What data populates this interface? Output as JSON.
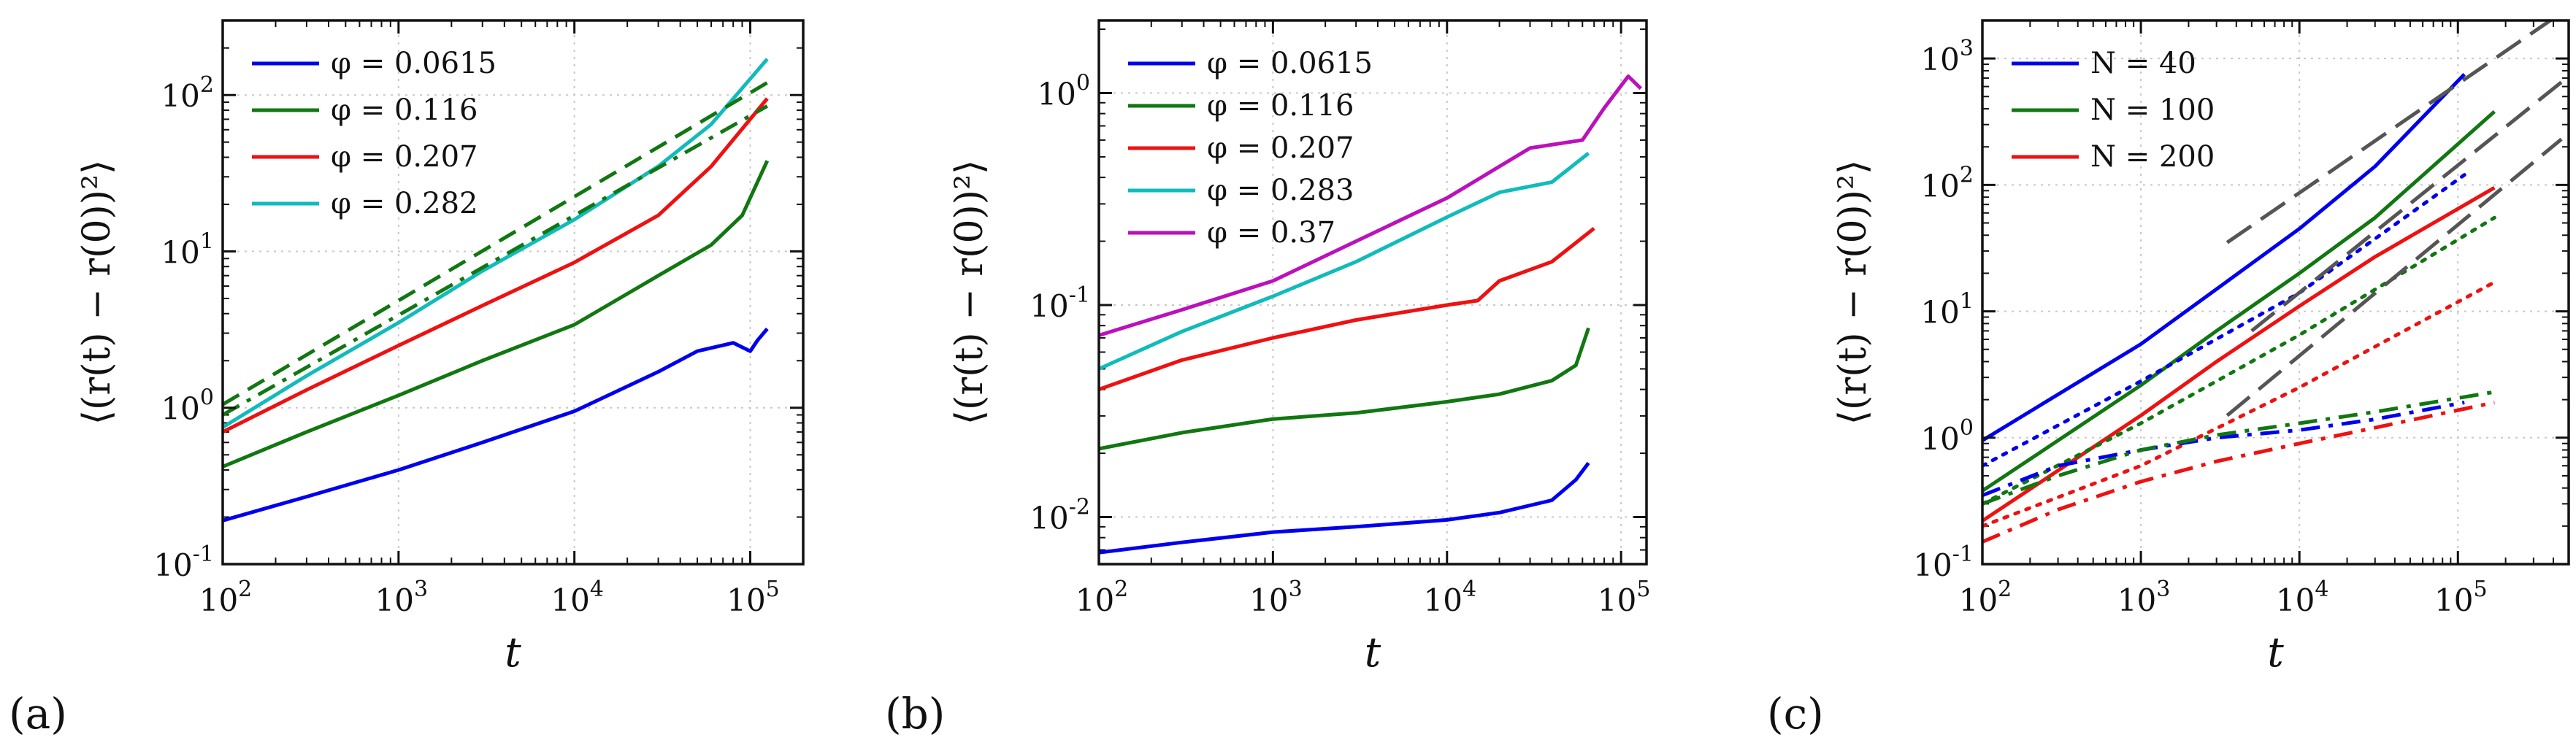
{
  "chart_data": [
    {
      "type": "line",
      "panel": "(a)",
      "xlabel": "t",
      "ylabel": "⟨(r(t) − r(0))²⟩",
      "xscale": "log",
      "yscale": "log",
      "xlim": [
        100,
        200000
      ],
      "ylim": [
        0.1,
        300
      ],
      "xticks": [
        {
          "value": 100,
          "base": "10",
          "exp": "2"
        },
        {
          "value": 1000,
          "base": "10",
          "exp": "3"
        },
        {
          "value": 10000,
          "base": "10",
          "exp": "4"
        },
        {
          "value": 100000,
          "base": "10",
          "exp": "5"
        }
      ],
      "yticks": [
        {
          "value": 0.1,
          "base": "10",
          "exp": "-1"
        },
        {
          "value": 1,
          "base": "10",
          "exp": "0"
        },
        {
          "value": 10,
          "base": "10",
          "exp": "1"
        },
        {
          "value": 100,
          "base": "10",
          "exp": "2"
        }
      ],
      "grid": true,
      "legend_position": "top-left",
      "series": [
        {
          "name": "φ = 0.0615",
          "color": "#0000ee",
          "dash": "solid",
          "x": [
            100,
            300,
            1000,
            3000,
            10000,
            30000,
            50000,
            80000,
            100000,
            110000,
            125000
          ],
          "y": [
            0.19,
            0.27,
            0.4,
            0.6,
            0.95,
            1.7,
            2.3,
            2.6,
            2.3,
            2.7,
            3.2
          ]
        },
        {
          "name": "φ = 0.116",
          "color": "#117711",
          "dash": "solid",
          "x": [
            100,
            300,
            1000,
            3000,
            10000,
            30000,
            60000,
            90000,
            125000
          ],
          "y": [
            0.42,
            0.7,
            1.2,
            2.0,
            3.4,
            7.0,
            11,
            17,
            38
          ]
        },
        {
          "name": "φ = 0.207",
          "color": "#ee1111",
          "dash": "solid",
          "x": [
            100,
            300,
            1000,
            3000,
            10000,
            30000,
            60000,
            125000
          ],
          "y": [
            0.7,
            1.3,
            2.5,
            4.5,
            8.5,
            17,
            35,
            95
          ]
        },
        {
          "name": "φ = 0.282",
          "color": "#11bbbb",
          "dash": "solid",
          "x": [
            100,
            300,
            1000,
            3000,
            10000,
            30000,
            60000,
            125000
          ],
          "y": [
            0.75,
            1.6,
            3.5,
            7.5,
            16,
            35,
            65,
            170
          ]
        },
        {
          "name": "",
          "color": "#117711",
          "dash": "dash",
          "x": [
            100,
            125000
          ],
          "y": [
            1.05,
            120
          ]
        },
        {
          "name": "",
          "color": "#117711",
          "dash": "dashdot",
          "x": [
            100,
            125000
          ],
          "y": [
            0.9,
            85
          ]
        }
      ]
    },
    {
      "type": "line",
      "panel": "(b)",
      "xlabel": "t",
      "ylabel": "⟨(r(t) − r(0))²⟩",
      "xscale": "log",
      "yscale": "log",
      "xlim": [
        100,
        140000
      ],
      "ylim": [
        0.006,
        2.2
      ],
      "xticks": [
        {
          "value": 100,
          "base": "10",
          "exp": "2"
        },
        {
          "value": 1000,
          "base": "10",
          "exp": "3"
        },
        {
          "value": 10000,
          "base": "10",
          "exp": "4"
        },
        {
          "value": 100000,
          "base": "10",
          "exp": "5"
        }
      ],
      "yticks": [
        {
          "value": 0.01,
          "base": "10",
          "exp": "-2"
        },
        {
          "value": 0.1,
          "base": "10",
          "exp": "-1"
        },
        {
          "value": 1,
          "base": "10",
          "exp": "0"
        }
      ],
      "grid": true,
      "legend_position": "top-left",
      "series": [
        {
          "name": "φ = 0.0615",
          "color": "#0000ee",
          "dash": "solid",
          "x": [
            100,
            300,
            1000,
            3000,
            10000,
            20000,
            40000,
            55000,
            65000
          ],
          "y": [
            0.0068,
            0.0076,
            0.0085,
            0.009,
            0.0097,
            0.0105,
            0.012,
            0.015,
            0.018
          ]
        },
        {
          "name": "φ = 0.116",
          "color": "#117711",
          "dash": "solid",
          "x": [
            100,
            300,
            1000,
            3000,
            10000,
            20000,
            40000,
            55000,
            65000
          ],
          "y": [
            0.021,
            0.025,
            0.029,
            0.031,
            0.035,
            0.038,
            0.044,
            0.052,
            0.078
          ]
        },
        {
          "name": "φ = 0.207",
          "color": "#ee1111",
          "dash": "solid",
          "x": [
            100,
            300,
            1000,
            3000,
            10000,
            15000,
            20000,
            40000,
            70000
          ],
          "y": [
            0.04,
            0.055,
            0.07,
            0.085,
            0.1,
            0.105,
            0.13,
            0.16,
            0.23
          ]
        },
        {
          "name": "φ = 0.283",
          "color": "#11bbbb",
          "dash": "solid",
          "x": [
            100,
            300,
            1000,
            3000,
            10000,
            20000,
            40000,
            65000
          ],
          "y": [
            0.05,
            0.075,
            0.11,
            0.16,
            0.26,
            0.34,
            0.38,
            0.52
          ]
        },
        {
          "name": "φ = 0.37",
          "color": "#bb11bb",
          "dash": "solid",
          "x": [
            100,
            300,
            1000,
            3000,
            10000,
            30000,
            60000,
            80000,
            110000,
            130000
          ],
          "y": [
            0.072,
            0.095,
            0.13,
            0.2,
            0.32,
            0.55,
            0.6,
            0.85,
            1.2,
            1.05
          ]
        }
      ]
    },
    {
      "type": "line",
      "panel": "(c)",
      "xlabel": "t",
      "ylabel": "⟨(r(t) − r(0))²⟩",
      "xscale": "log",
      "yscale": "log",
      "xlim": [
        100,
        500000
      ],
      "ylim": [
        0.1,
        2000
      ],
      "xticks": [
        {
          "value": 100,
          "base": "10",
          "exp": "2"
        },
        {
          "value": 1000,
          "base": "10",
          "exp": "3"
        },
        {
          "value": 10000,
          "base": "10",
          "exp": "4"
        },
        {
          "value": 100000,
          "base": "10",
          "exp": "5"
        }
      ],
      "yticks": [
        {
          "value": 0.1,
          "base": "10",
          "exp": "-1"
        },
        {
          "value": 1,
          "base": "10",
          "exp": "0"
        },
        {
          "value": 10,
          "base": "10",
          "exp": "1"
        },
        {
          "value": 100,
          "base": "10",
          "exp": "2"
        },
        {
          "value": 1000,
          "base": "10",
          "exp": "3"
        }
      ],
      "grid": true,
      "legend_position": "top-left",
      "series": [
        {
          "name": "N = 40",
          "color": "#0000ee",
          "dash": "solid",
          "x": [
            100,
            300,
            1000,
            3000,
            10000,
            30000,
            110000
          ],
          "y": [
            0.95,
            2.2,
            5.5,
            15,
            45,
            140,
            750
          ]
        },
        {
          "name": "N = 100",
          "color": "#117711",
          "dash": "solid",
          "x": [
            100,
            300,
            1000,
            3000,
            10000,
            30000,
            170000
          ],
          "y": [
            0.38,
            0.95,
            2.6,
            7,
            20,
            55,
            380
          ]
        },
        {
          "name": "N = 200",
          "color": "#ee1111",
          "dash": "solid",
          "x": [
            100,
            300,
            1000,
            3000,
            10000,
            30000,
            170000
          ],
          "y": [
            0.22,
            0.55,
            1.5,
            4,
            11,
            27,
            95
          ]
        },
        {
          "name": "",
          "color": "#0000ee",
          "dash": "dot",
          "x": [
            100,
            1000,
            10000,
            110000
          ],
          "y": [
            0.6,
            2.8,
            14,
            120
          ]
        },
        {
          "name": "",
          "color": "#117711",
          "dash": "dot",
          "x": [
            100,
            1000,
            10000,
            170000
          ],
          "y": [
            0.3,
            1.3,
            6.5,
            55
          ]
        },
        {
          "name": "",
          "color": "#ee1111",
          "dash": "dot",
          "x": [
            100,
            1000,
            10000,
            170000
          ],
          "y": [
            0.2,
            0.6,
            2.5,
            17
          ]
        },
        {
          "name": "",
          "color": "#0000ee",
          "dash": "dashdot",
          "x": [
            100,
            300,
            1000,
            3000,
            10000,
            30000,
            110000
          ],
          "y": [
            0.35,
            0.6,
            0.8,
            1.0,
            1.15,
            1.4,
            1.9
          ]
        },
        {
          "name": "",
          "color": "#117711",
          "dash": "dashdot",
          "x": [
            100,
            300,
            1000,
            3000,
            10000,
            30000,
            170000
          ],
          "y": [
            0.3,
            0.5,
            0.8,
            1.05,
            1.3,
            1.6,
            2.3
          ]
        },
        {
          "name": "",
          "color": "#ee1111",
          "dash": "dashdot",
          "x": [
            100,
            300,
            1000,
            3000,
            10000,
            30000,
            170000
          ],
          "y": [
            0.15,
            0.27,
            0.45,
            0.65,
            0.9,
            1.2,
            1.9
          ]
        },
        {
          "name": "",
          "color": "#555555",
          "dash": "longdash",
          "x": [
            3500,
            450000
          ],
          "y": [
            35,
            2300
          ]
        },
        {
          "name": "",
          "color": "#555555",
          "dash": "longdash",
          "x": [
            5000,
            450000
          ],
          "y": [
            7,
            650
          ]
        },
        {
          "name": "",
          "color": "#555555",
          "dash": "longdash",
          "x": [
            3500,
            450000
          ],
          "y": [
            1.5,
            230
          ]
        }
      ]
    }
  ]
}
